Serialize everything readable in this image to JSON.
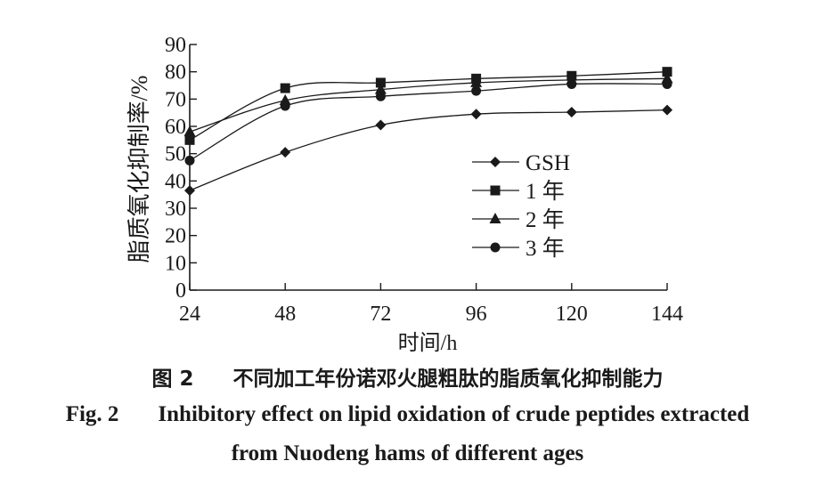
{
  "chart_data": {
    "type": "line",
    "xlabel": "时间/h",
    "ylabel": "脂质氧化抑制率/%",
    "x": [
      24,
      48,
      72,
      96,
      120,
      144
    ],
    "xlim": [
      24,
      144
    ],
    "ylim": [
      0,
      90
    ],
    "yticks": [
      0,
      10,
      20,
      30,
      40,
      50,
      60,
      70,
      80,
      90
    ],
    "grid": false,
    "legend_position": "right-middle",
    "series": [
      {
        "name": "GSH",
        "marker": "diamond",
        "values": [
          36.5,
          50.5,
          60.5,
          64.5,
          65.2,
          66.0
        ]
      },
      {
        "name": "1 年",
        "marker": "square",
        "values": [
          55.0,
          74.0,
          76.0,
          77.5,
          78.5,
          80.0
        ]
      },
      {
        "name": "2 年",
        "marker": "triangle",
        "values": [
          58.0,
          69.5,
          73.5,
          76.0,
          77.0,
          77.5
        ]
      },
      {
        "name": "3 年",
        "marker": "circle",
        "values": [
          47.5,
          67.5,
          71.0,
          73.0,
          75.5,
          75.5
        ]
      }
    ]
  },
  "caption": {
    "zh_label": "图 2",
    "zh_text": "不同加工年份诺邓火腿粗肽的脂质氧化抑制能力",
    "en_label": "Fig. 2",
    "en_text_line1": "Inhibitory effect on lipid oxidation of crude peptides extracted",
    "en_text_line2": "from Nuodeng hams of different ages"
  },
  "colors": {
    "ink": "#1a1a1a",
    "background": "#ffffff"
  }
}
